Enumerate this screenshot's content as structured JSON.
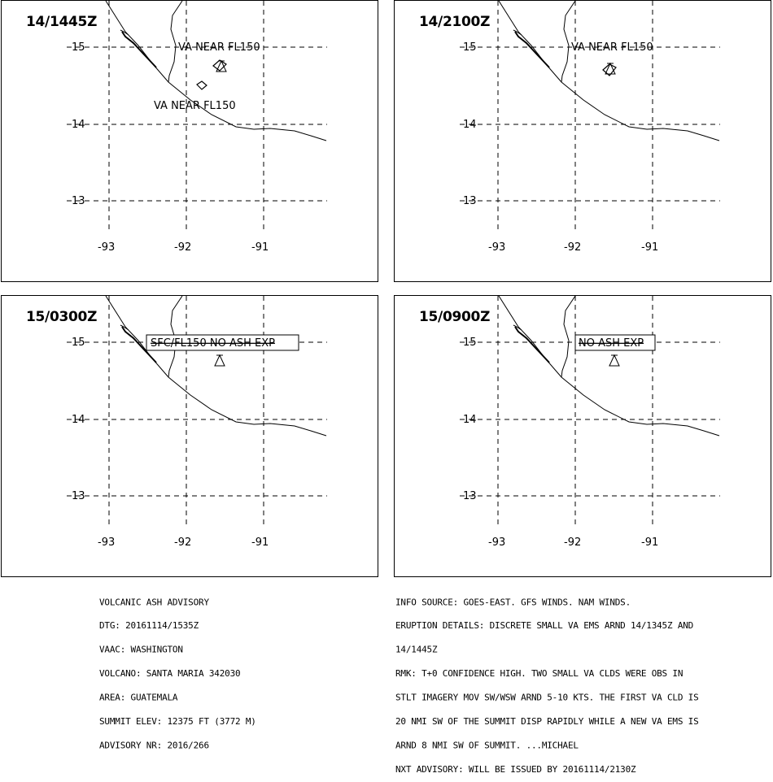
{
  "panels": [
    {
      "title": "14/1445Z",
      "ash_labels": [
        "VA NEAR FL150",
        "VA NEAR FL150"
      ],
      "box_label": "",
      "lat_ticks": [
        "15",
        "14",
        "13"
      ],
      "lon_ticks": [
        "-93",
        "-92",
        "-91"
      ]
    },
    {
      "title": "14/2100Z",
      "ash_labels": [
        "VA NEAR FL150"
      ],
      "box_label": "",
      "lat_ticks": [
        "15",
        "14",
        "13"
      ],
      "lon_ticks": [
        "-93",
        "-92",
        "-91"
      ]
    },
    {
      "title": "15/0300Z",
      "ash_labels": [],
      "box_label": "SFC/FL150 NO ASH EXP",
      "lat_ticks": [
        "15",
        "14",
        "13"
      ],
      "lon_ticks": [
        "-93",
        "-92",
        "-91"
      ]
    },
    {
      "title": "15/0900Z",
      "ash_labels": [],
      "box_label": "NO ASH EXP",
      "lat_ticks": [
        "15",
        "14",
        "13"
      ],
      "lon_ticks": [
        "-93",
        "-92",
        "-91"
      ]
    }
  ],
  "advisory_left": [
    "VOLCANIC ASH ADVISORY",
    "DTG: 20161114/1535Z",
    "VAAC: WASHINGTON",
    "VOLCANO: SANTA MARIA 342030",
    "AREA: GUATEMALA",
    "SUMMIT ELEV: 12375 FT (3772 M)",
    "ADVISORY NR: 2016/266"
  ],
  "advisory_right": [
    "INFO SOURCE: GOES-EAST. GFS WINDS. NAM WINDS.",
    "ERUPTION DETAILS: DISCRETE SMALL VA EMS ARND 14/1345Z AND",
    "14/1445Z",
    "RMK: T+0 CONFIDENCE HIGH. TWO SMALL VA CLDS WERE OBS IN",
    "STLT IMAGERY MOV SW/WSW ARND 5-10 KTS. THE FIRST VA CLD IS",
    "20 NMI SW OF THE SUMMIT DISP RAPIDLY WHILE A NEW VA EMS IS",
    "ARND 8 NMI SW OF SUMMIT. ...MICHAEL",
    "NXT ADVISORY: WILL BE ISSUED BY 20161114/2130Z"
  ]
}
